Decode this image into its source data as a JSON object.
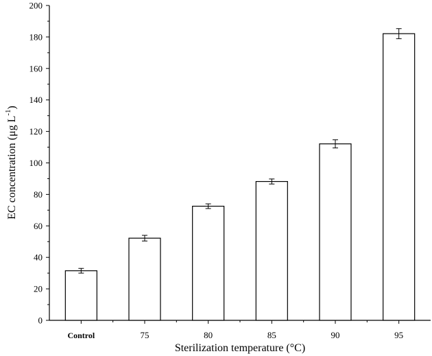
{
  "chart_data": {
    "type": "bar",
    "categories": [
      "Control",
      "75",
      "80",
      "85",
      "90",
      "95"
    ],
    "values": [
      31.5,
      52.2,
      72.5,
      88.2,
      112.1,
      182.1
    ],
    "errors": [
      1.5,
      1.8,
      1.5,
      1.6,
      2.6,
      3.2
    ],
    "xlabel": "Sterilization temperature (°C)",
    "ylabel_main": "EC concentration (μg L",
    "ylabel_sup": "-1",
    "ylabel_close": ")",
    "ylim": [
      0,
      200
    ],
    "yticks": [
      0,
      20,
      40,
      60,
      80,
      100,
      120,
      140,
      160,
      180,
      200
    ],
    "grid": false,
    "bar_fill": "#ffffff",
    "bar_stroke": "#000000"
  }
}
